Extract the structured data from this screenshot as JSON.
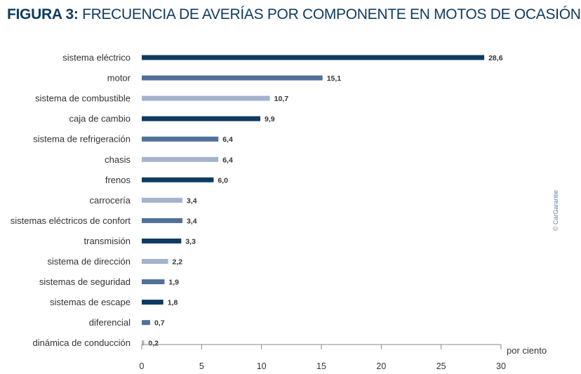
{
  "title": {
    "lead": "FIGURA 3:",
    "rest": "FRECUENCIA DE AVERÍAS POR COMPONENTE EN MOTOS DE OCASIÓN"
  },
  "credit": "© CarGarantie",
  "colors": {
    "title": "#0f3b61",
    "dark": "#0f3b61",
    "mid": "#50709a",
    "light": "#a3b3cc",
    "axis": "#8a8a8a",
    "text": "#333333"
  },
  "chart_data": {
    "type": "bar",
    "orientation": "horizontal",
    "title": "FIGURA 3: FRECUENCIA DE AVERÍAS POR COMPONENTE EN MOTOS DE OCASIÓN",
    "xlabel": "por ciento",
    "ylabel": "",
    "xlim": [
      0,
      30
    ],
    "xticks": [
      0,
      5,
      10,
      15,
      20,
      25,
      30
    ],
    "grid": false,
    "categories": [
      "sistema eléctrico",
      "motor",
      "sistema de combustible",
      "caja de cambio",
      "sistema de refrigeración",
      "chasis",
      "frenos",
      "carrocería",
      "sistemas eléctricos de confort",
      "transmisión",
      "sistema de dirección",
      "sistemas de seguridad",
      "sistemas de escape",
      "diferencial",
      "dinámica de conducción"
    ],
    "values": [
      28.6,
      15.1,
      10.7,
      9.9,
      6.4,
      6.4,
      6.0,
      3.4,
      3.4,
      3.3,
      2.2,
      1.9,
      1.8,
      0.7,
      0.2
    ],
    "value_labels": [
      "28,6",
      "15,1",
      "10,7",
      "9,9",
      "6,4",
      "6,4",
      "6,0",
      "3,4",
      "3,4",
      "3,3",
      "2,2",
      "1,9",
      "1,8",
      "0,7",
      "0,2"
    ],
    "bar_colors": [
      "dark",
      "mid",
      "light",
      "dark",
      "mid",
      "light",
      "dark",
      "light",
      "mid",
      "dark",
      "light",
      "mid",
      "dark",
      "mid",
      "light"
    ]
  }
}
